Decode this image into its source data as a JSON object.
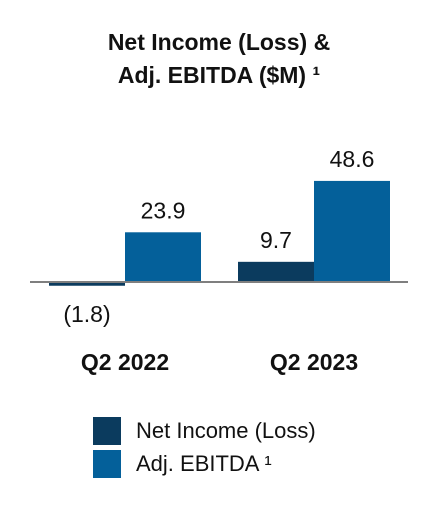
{
  "chart_data": {
    "type": "bar",
    "title_lines": [
      "Net Income (Loss) &",
      "Adj. EBITDA ($M) ¹"
    ],
    "categories": [
      "Q2 2022",
      "Q2 2023"
    ],
    "series": [
      {
        "name": "Net Income (Loss)",
        "color": "#0b3b5e",
        "values": [
          -1.8,
          9.7
        ],
        "value_labels": [
          "(1.8)",
          "9.7"
        ]
      },
      {
        "name": "Adj. EBITDA ¹",
        "color": "#04609a",
        "values": [
          23.9,
          48.6
        ],
        "value_labels": [
          "23.9",
          "48.6"
        ]
      }
    ],
    "baseline_color": "#7f7f7f",
    "legend_position": "bottom",
    "grid": false
  }
}
